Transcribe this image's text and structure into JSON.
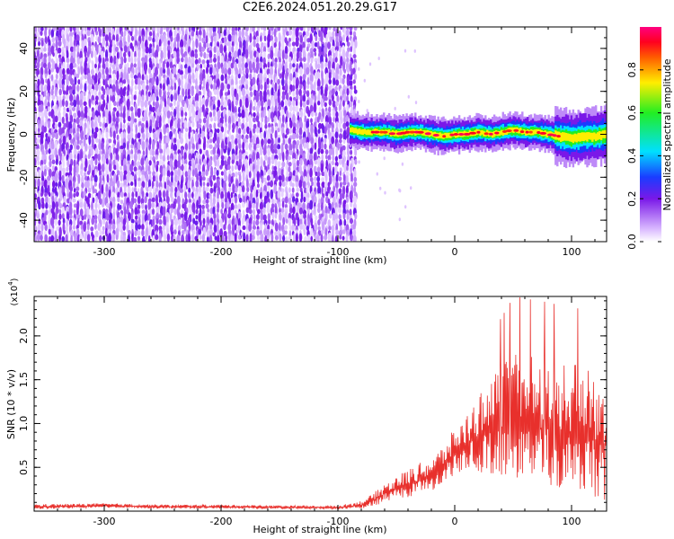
{
  "title": "C2E6.2024.051.20.29.G17",
  "colors": {
    "background": "#ffffff",
    "axis": "#000000",
    "snr_line": "#e8302c",
    "noise": "#7a18e8"
  },
  "chart_data": [
    {
      "type": "heatmap",
      "title": "C2E6.2024.051.20.29.G17",
      "xlabel": "Height of straight line (km)",
      "ylabel": "Frequency (Hz)",
      "xlim": [
        -360,
        130
      ],
      "ylim": [
        -50,
        50
      ],
      "x_ticks": [
        -300,
        -200,
        -100,
        0,
        100
      ],
      "y_ticks": [
        -40,
        -20,
        0,
        20,
        40
      ],
      "grid": false,
      "description_regions": {
        "noise_region_x": [
          -360,
          -85
        ],
        "signal_region_x": [
          -90,
          130
        ]
      },
      "signal_track": {
        "x": [
          -90,
          -80,
          -70,
          -60,
          -50,
          -40,
          -30,
          -20,
          -10,
          0,
          10,
          20,
          30,
          40,
          50,
          60,
          70,
          80,
          90,
          100,
          110,
          120,
          130
        ],
        "freq_hz": [
          2,
          1,
          1,
          1,
          0,
          1,
          1,
          0,
          -1,
          0,
          0,
          1,
          0,
          1,
          2,
          1,
          1,
          0,
          -1,
          -2,
          -1,
          -1,
          0
        ]
      },
      "colorbar": {
        "label": "Normalized spectral amplitude",
        "range": [
          0.0,
          1.0
        ],
        "ticks": [
          0.0,
          0.2,
          0.4,
          0.6,
          0.8
        ],
        "tick_labels": [
          "0.0",
          "0.2",
          "0.4",
          "0.6",
          "0.8"
        ],
        "colormap": "rainbow (white to violet to blue to cyan to green to yellow to red to magenta)"
      }
    },
    {
      "type": "line",
      "xlabel": "Height of straight line (km)",
      "ylabel": "SNR (10 * v/v)",
      "y_multiplier": "(x10^4)",
      "y_multiplier_base": "(x10",
      "y_multiplier_exp": "4",
      "y_multiplier_close": ")",
      "xlim": [
        -360,
        130
      ],
      "ylim": [
        0,
        24500
      ],
      "x_ticks": [
        -300,
        -200,
        -100,
        0,
        100
      ],
      "y_ticks": [
        5000,
        10000,
        15000,
        20000
      ],
      "y_tick_labels": [
        "0.5",
        "1.0",
        "1.5",
        "2.0"
      ],
      "grid": false,
      "series": [
        {
          "x": [
            -360,
            -300,
            -250,
            -200,
            -150,
            -100,
            -80,
            -70,
            -60,
            -50,
            -40,
            -30,
            -20,
            -10,
            0,
            10,
            20,
            30,
            40,
            50,
            60,
            70,
            80,
            90,
            100,
            110,
            120,
            130
          ],
          "y": [
            500,
            600,
            500,
            500,
            450,
            400,
            700,
            1200,
            2000,
            2500,
            3000,
            3500,
            4000,
            5000,
            6500,
            7500,
            8500,
            9000,
            9500,
            10000,
            10000,
            9500,
            9500,
            9000,
            9000,
            8500,
            8000,
            7500
          ],
          "spread": [
            300,
            300,
            250,
            250,
            200,
            200,
            500,
            800,
            1200,
            1500,
            1800,
            2000,
            2200,
            2500,
            3000,
            3500,
            5000,
            6000,
            7000,
            8000,
            8000,
            8000,
            8000,
            8000,
            8000,
            8000,
            8000,
            8000
          ]
        }
      ]
    }
  ]
}
